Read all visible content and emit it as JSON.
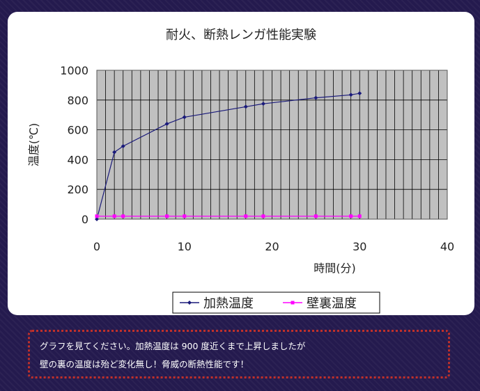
{
  "chart_data": {
    "type": "line",
    "title": "耐火、断熱レンガ性能実験",
    "xlabel": "時間(分)",
    "ylabel": "温度(℃)",
    "xlim": [
      0,
      40
    ],
    "ylim": [
      0,
      1000
    ],
    "xticks": [
      "0",
      "10",
      "20",
      "30",
      "40"
    ],
    "yticks": [
      "0",
      "200",
      "400",
      "600",
      "800",
      "1000"
    ],
    "grid": true,
    "legend_position": "bottom",
    "series": [
      {
        "name": "加熱温度",
        "color": "#1a1a7a",
        "marker": "diamond",
        "x": [
          0,
          2,
          3,
          8,
          10,
          17,
          19,
          25,
          29,
          30
        ],
        "y": [
          0,
          450,
          490,
          640,
          685,
          755,
          775,
          815,
          835,
          845
        ]
      },
      {
        "name": "壁裏温度",
        "color": "#ff00ff",
        "marker": "square",
        "x": [
          0,
          2,
          3,
          8,
          10,
          17,
          19,
          25,
          29,
          30
        ],
        "y": [
          20,
          20,
          20,
          20,
          20,
          20,
          20,
          20,
          20,
          20
        ]
      }
    ]
  },
  "caption": {
    "line1": "グラフを見てください。加熱温度は 900 度近くまで上昇しましたが",
    "line2": "壁の裏の温度は殆ど変化無し！脅威の断熱性能です！",
    "border_color": "#c0302a"
  }
}
